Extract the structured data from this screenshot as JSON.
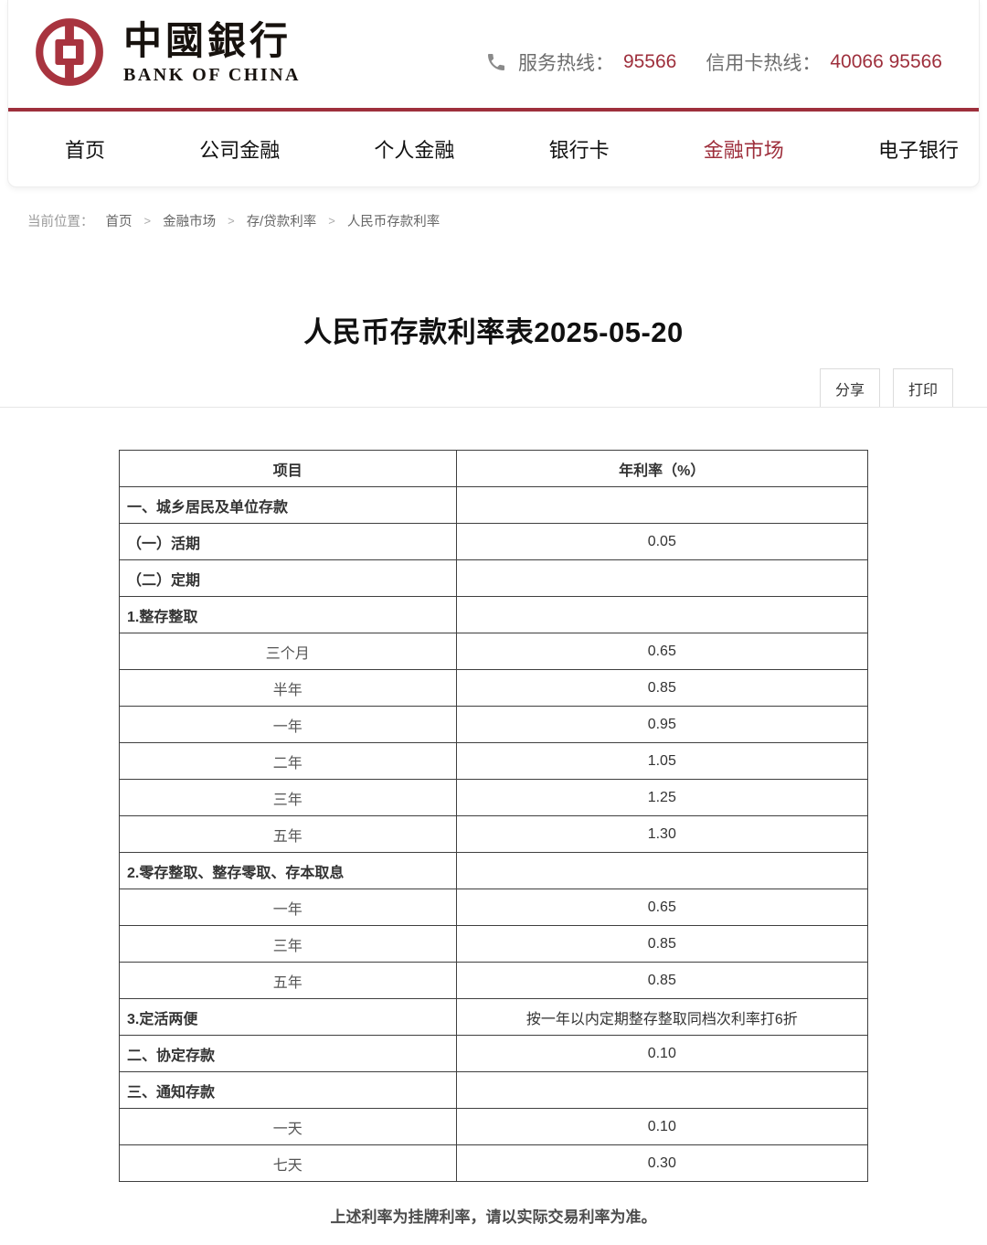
{
  "colors": {
    "accent_red": "#9e2f3c"
  },
  "header": {
    "logo": {
      "cn": "中國銀行",
      "en": "BANK OF CHINA"
    },
    "hotline": {
      "service_label": "服务热线：",
      "service_number": "95566",
      "credit_label": "信用卡热线：",
      "credit_number": "40066 95566"
    }
  },
  "nav": {
    "items": [
      {
        "label": "首页",
        "active": false
      },
      {
        "label": "公司金融",
        "active": false
      },
      {
        "label": "个人金融",
        "active": false
      },
      {
        "label": "银行卡",
        "active": false
      },
      {
        "label": "金融市场",
        "active": true
      },
      {
        "label": "电子银行",
        "active": false
      }
    ]
  },
  "breadcrumb": {
    "prefix": "当前位置：",
    "separator": ">",
    "items": [
      "首页",
      "金融市场",
      "存/贷款利率",
      "人民币存款利率"
    ]
  },
  "page": {
    "title": "人民币存款利率表2025-05-20",
    "share_label": "分享",
    "print_label": "打印",
    "footnote": "上述利率为挂牌利率，请以实际交易利率为准。"
  },
  "table": {
    "headers": [
      "项目",
      "年利率（%）"
    ],
    "rows": [
      {
        "label": "一、城乡居民及单位存款",
        "value": "",
        "style": "section"
      },
      {
        "label": "（一）活期",
        "value": "0.05",
        "style": "section"
      },
      {
        "label": "（二）定期",
        "value": "",
        "style": "section"
      },
      {
        "label": "1.整存整取",
        "value": "",
        "style": "section"
      },
      {
        "label": "三个月",
        "value": "0.65",
        "style": "item"
      },
      {
        "label": "半年",
        "value": "0.85",
        "style": "item"
      },
      {
        "label": "一年",
        "value": "0.95",
        "style": "item"
      },
      {
        "label": "二年",
        "value": "1.05",
        "style": "item"
      },
      {
        "label": "三年",
        "value": "1.25",
        "style": "item"
      },
      {
        "label": "五年",
        "value": "1.30",
        "style": "item"
      },
      {
        "label": "2.零存整取、整存零取、存本取息",
        "value": "",
        "style": "section"
      },
      {
        "label": "一年",
        "value": "0.65",
        "style": "item"
      },
      {
        "label": "三年",
        "value": "0.85",
        "style": "item"
      },
      {
        "label": "五年",
        "value": "0.85",
        "style": "item"
      },
      {
        "label": "3.定活两便",
        "value": "按一年以内定期整存整取同档次利率打6折",
        "style": "section"
      },
      {
        "label": "二、协定存款",
        "value": "0.10",
        "style": "section"
      },
      {
        "label": "三、通知存款",
        "value": "",
        "style": "section"
      },
      {
        "label": "一天",
        "value": "0.10",
        "style": "item"
      },
      {
        "label": "七天",
        "value": "0.30",
        "style": "item"
      }
    ]
  }
}
